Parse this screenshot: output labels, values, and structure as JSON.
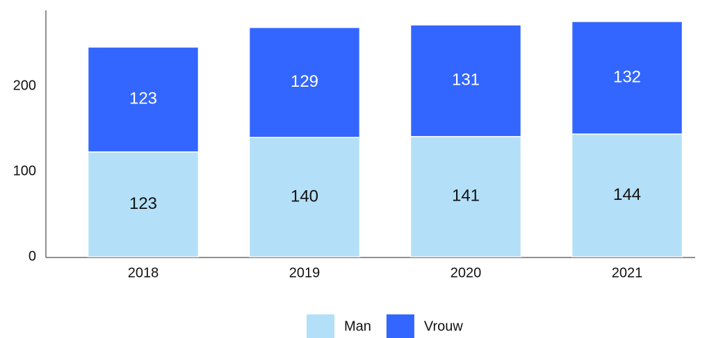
{
  "chart_data": {
    "type": "bar",
    "stacked": true,
    "categories": [
      "2018",
      "2019",
      "2020",
      "2021"
    ],
    "series": [
      {
        "name": "Man",
        "color": "#b3e0f8",
        "label_color": "#111111",
        "values": [
          123,
          140,
          141,
          144
        ]
      },
      {
        "name": "Vrouw",
        "color": "#3366ff",
        "label_color": "#ffffff",
        "values": [
          123,
          129,
          131,
          132
        ]
      }
    ],
    "ylim": [
      0,
      289
    ],
    "yticks": [
      0,
      100,
      200
    ],
    "grid": false,
    "legend": "bottom"
  }
}
